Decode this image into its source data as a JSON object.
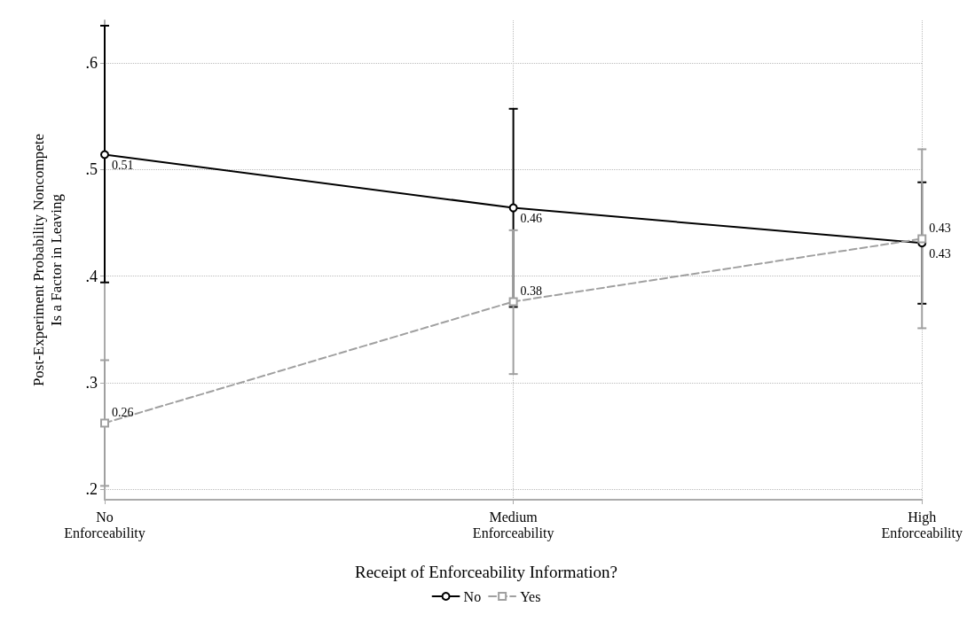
{
  "chart_data": {
    "type": "line",
    "ylabel": "Post-Experiment Probability Noncompete\nIs a Factor in Leaving",
    "legend_title": "Receipt of Enforceability Information?",
    "categories": [
      "No\nEnforceability",
      "Medium\nEnforceability",
      "High\nEnforceability"
    ],
    "series": [
      {
        "name": "No",
        "color": "#000000",
        "marker": "circle",
        "line_style": "solid",
        "values": [
          0.514,
          0.464,
          0.431
        ],
        "errors": [
          [
            0.394,
            0.635
          ],
          [
            0.371,
            0.557
          ],
          [
            0.374,
            0.488
          ]
        ],
        "value_labels": [
          "0.51",
          "0.46",
          "0.43"
        ]
      },
      {
        "name": "Yes",
        "color": "#a0a0a0",
        "marker": "square",
        "line_style": "dashed",
        "values": [
          0.262,
          0.376,
          0.435
        ],
        "errors": [
          [
            0.203,
            0.321
          ],
          [
            0.308,
            0.443
          ],
          [
            0.351,
            0.519
          ]
        ],
        "value_labels": [
          "0.26",
          "0.38",
          "0.43"
        ]
      }
    ],
    "ylim": [
      0.19,
      0.64
    ],
    "yticks": [
      {
        "value": 0.2,
        "label": ".2"
      },
      {
        "value": 0.3,
        "label": ".3"
      },
      {
        "value": 0.4,
        "label": ".4"
      },
      {
        "value": 0.5,
        "label": ".5"
      },
      {
        "value": 0.6,
        "label": ".6"
      }
    ],
    "grid": true,
    "legend": "bottom"
  }
}
